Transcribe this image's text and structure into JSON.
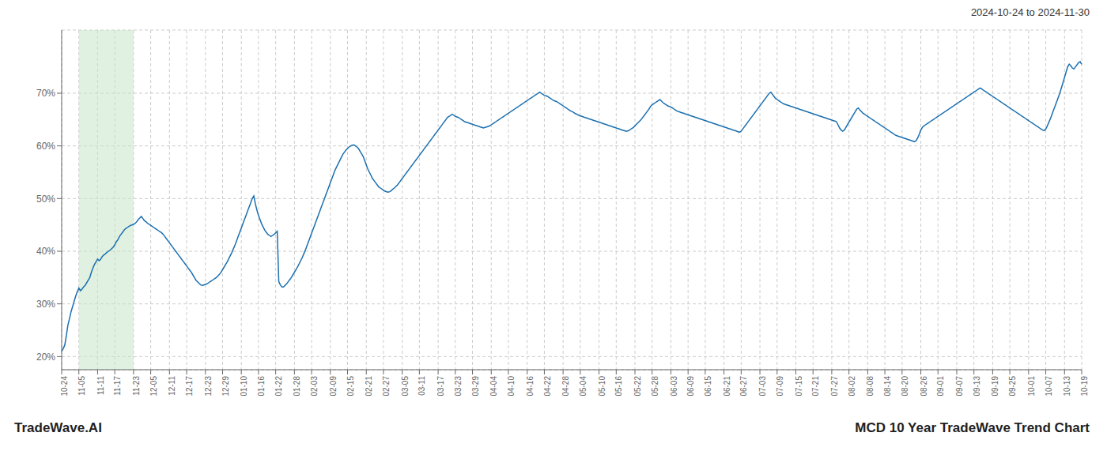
{
  "chart_data": {
    "type": "line",
    "title": "MCD 10 Year TradeWave Trend Chart",
    "subtitle": "2024-10-24 to 2024-11-30",
    "annotations": [
      "TradeWave.AI"
    ],
    "color": "#1a6faf",
    "grid": true,
    "shade": {
      "from": "11-05",
      "to": "11-23",
      "color": "#c8e6c9"
    },
    "ylim": [
      0.175,
      0.82
    ],
    "yticks": [
      {
        "value": 0.2,
        "label": "20%"
      },
      {
        "value": 0.3,
        "label": "30%"
      },
      {
        "value": 0.4,
        "label": "40%"
      },
      {
        "value": 0.5,
        "label": "50%"
      },
      {
        "value": 0.6,
        "label": "60%"
      },
      {
        "value": 0.7,
        "label": "70%"
      }
    ],
    "categories": [
      "10-24",
      null,
      null,
      null,
      null,
      null,
      null,
      null,
      null,
      null,
      null,
      "11-05",
      null,
      null,
      null,
      null,
      null,
      null,
      null,
      null,
      null,
      null,
      null,
      "11-11",
      null,
      null,
      null,
      null,
      null,
      null,
      null,
      null,
      null,
      null,
      "11-17",
      null,
      null,
      null,
      null,
      null,
      null,
      null,
      null,
      null,
      null,
      null,
      "11-23",
      null,
      null,
      null,
      null,
      null,
      null,
      null,
      null,
      null,
      null,
      "12-05",
      null,
      null,
      null,
      null,
      null,
      null,
      null,
      null,
      null,
      null,
      null,
      "12-11",
      null,
      null,
      null,
      null,
      null,
      null,
      null,
      null,
      null,
      null,
      "12-17",
      null,
      null,
      null,
      null,
      null,
      null,
      null,
      null,
      null,
      null,
      null,
      "12-23",
      null,
      null,
      null,
      null,
      null,
      null,
      null,
      null,
      null,
      null,
      "12-29",
      null,
      null,
      null,
      null,
      null,
      null,
      null,
      null,
      null,
      null,
      null,
      "01-10",
      null,
      null,
      null,
      null,
      null,
      null,
      null,
      null,
      null,
      null,
      "01-16",
      null,
      null,
      null,
      null,
      null,
      null,
      null,
      null,
      null,
      null,
      "01-22",
      null,
      null,
      null,
      null,
      null,
      null,
      null,
      null,
      null,
      null,
      null,
      "01-28",
      null,
      null,
      null,
      null,
      null,
      null,
      null,
      null,
      null,
      null,
      "02-03",
      null,
      null,
      null,
      null,
      null,
      null,
      null,
      null,
      null,
      null,
      null,
      "02-09",
      null,
      null,
      null,
      null,
      null,
      null,
      null,
      null,
      null,
      null,
      "02-15",
      null,
      null,
      null,
      null,
      null,
      null,
      null,
      null,
      null,
      null,
      null,
      "02-21",
      null,
      null,
      null,
      null,
      null,
      null,
      null,
      null,
      null,
      null,
      "02-27",
      null,
      null,
      null,
      null,
      null,
      null,
      null,
      null,
      null,
      null,
      null,
      "03-05",
      null,
      null,
      null,
      null,
      null,
      null,
      null,
      null,
      null,
      null,
      "03-11",
      null,
      null,
      null,
      null,
      null,
      null,
      null,
      null,
      null,
      null,
      null,
      "03-17",
      null,
      null,
      null,
      null,
      null,
      null,
      null,
      null,
      null,
      null,
      "03-23",
      null,
      null,
      null,
      null,
      null,
      null,
      null,
      null,
      null,
      null,
      "03-29",
      null,
      null,
      null,
      null,
      null,
      null,
      null,
      null,
      null,
      null,
      null,
      "04-04",
      null,
      null,
      null,
      null,
      null,
      null,
      null,
      null,
      null,
      null,
      "04-10",
      null,
      null,
      null,
      null,
      null,
      null,
      null,
      null,
      null,
      null,
      null,
      "04-16",
      null,
      null,
      null,
      null,
      null,
      null,
      null,
      null,
      null,
      null,
      "04-22",
      null,
      null,
      null,
      null,
      null,
      null,
      null,
      null,
      null,
      null,
      null,
      "04-28",
      null,
      null,
      null,
      null,
      null,
      null,
      null,
      null,
      null,
      null,
      "05-04",
      null,
      null,
      null,
      null,
      null,
      null,
      null,
      null,
      null,
      null,
      null,
      "05-10",
      null,
      null,
      null,
      null,
      null,
      null,
      null,
      null,
      null,
      null,
      "05-16",
      null,
      null,
      null,
      null,
      null,
      null,
      null,
      null,
      null,
      null,
      null,
      "05-22",
      null,
      null,
      null,
      null,
      null,
      null,
      null,
      null,
      null,
      null,
      "05-28",
      null,
      null,
      null,
      null,
      null,
      null,
      null,
      null,
      null,
      null,
      null,
      "06-03",
      null,
      null,
      null,
      null,
      null,
      null,
      null,
      null,
      null,
      null,
      "06-09",
      null,
      null,
      null,
      null,
      null,
      null,
      null,
      null,
      null,
      null,
      "06-15",
      null,
      null,
      null,
      null,
      null,
      null,
      null,
      null,
      null,
      null,
      null,
      "06-21",
      null,
      null,
      null,
      null,
      null,
      null,
      null,
      null,
      null,
      null,
      "06-27",
      null,
      null,
      null,
      null,
      null,
      null,
      null,
      null,
      null,
      null,
      null,
      "07-03",
      null,
      null,
      null,
      null,
      null,
      null,
      null,
      null,
      null,
      null,
      "07-09",
      null,
      null,
      null,
      null,
      null,
      null,
      null,
      null,
      null,
      null,
      null,
      "07-15",
      null,
      null,
      null,
      null,
      null,
      null,
      null,
      null,
      null,
      null,
      "07-21",
      null,
      null,
      null,
      null,
      null,
      null,
      null,
      null,
      null,
      null,
      null,
      "07-27",
      null,
      null,
      null,
      null,
      null,
      null,
      null,
      null,
      null,
      null,
      "08-02",
      null,
      null,
      null,
      null,
      null,
      null,
      null,
      null,
      null,
      null,
      null,
      "08-08",
      null,
      null,
      null,
      null,
      null,
      null,
      null,
      null,
      null,
      null,
      "08-14",
      null,
      null,
      null,
      null,
      null,
      null,
      null,
      null,
      null,
      null,
      "08-20",
      null,
      null,
      null,
      null,
      null,
      null,
      null,
      null,
      null,
      null,
      null,
      "08-26",
      null,
      null,
      null,
      null,
      null,
      null,
      null,
      null,
      null,
      null,
      "09-01",
      null,
      null,
      null,
      null,
      null,
      null,
      null,
      null,
      null,
      null,
      null,
      "09-07",
      null,
      null,
      null,
      null,
      null,
      null,
      null,
      null,
      null,
      null,
      "09-13",
      null,
      null,
      null,
      null,
      null,
      null,
      null,
      null,
      null,
      null,
      null,
      "09-19",
      null,
      null,
      null,
      null,
      null,
      null,
      null,
      null,
      null,
      null,
      "09-25",
      null,
      null,
      null,
      null,
      null,
      null,
      null,
      null,
      null,
      null,
      null,
      "10-01",
      null,
      null,
      null,
      null,
      null,
      null,
      null,
      null,
      null,
      null,
      "10-07",
      null,
      null,
      null,
      null,
      null,
      null,
      null,
      null,
      null,
      null,
      null,
      "10-13",
      null,
      null,
      null,
      null,
      null,
      null,
      null,
      null,
      null,
      null,
      "10-19"
    ],
    "values": [
      0.21,
      0.215,
      0.222,
      0.24,
      0.26,
      0.272,
      0.285,
      0.295,
      0.305,
      0.315,
      0.323,
      0.33,
      0.325,
      0.328,
      0.332,
      0.335,
      0.34,
      0.345,
      0.35,
      0.36,
      0.368,
      0.375,
      0.38,
      0.385,
      0.382,
      0.385,
      0.39,
      0.393,
      0.395,
      0.398,
      0.4,
      0.402,
      0.405,
      0.408,
      0.412,
      0.418,
      0.422,
      0.428,
      0.432,
      0.436,
      0.44,
      0.443,
      0.445,
      0.447,
      0.449,
      0.45,
      0.451,
      0.453,
      0.456,
      0.46,
      0.463,
      0.466,
      0.462,
      0.458,
      0.456,
      0.453,
      0.451,
      0.449,
      0.447,
      0.445,
      0.443,
      0.441,
      0.439,
      0.437,
      0.435,
      0.432,
      0.428,
      0.424,
      0.42,
      0.416,
      0.412,
      0.408,
      0.404,
      0.4,
      0.396,
      0.392,
      0.388,
      0.384,
      0.38,
      0.376,
      0.372,
      0.368,
      0.364,
      0.36,
      0.355,
      0.35,
      0.345,
      0.342,
      0.339,
      0.336,
      0.335,
      0.336,
      0.337,
      0.338,
      0.34,
      0.342,
      0.344,
      0.346,
      0.348,
      0.35,
      0.353,
      0.356,
      0.36,
      0.365,
      0.37,
      0.375,
      0.38,
      0.386,
      0.392,
      0.398,
      0.405,
      0.412,
      0.42,
      0.428,
      0.436,
      0.444,
      0.452,
      0.46,
      0.468,
      0.476,
      0.484,
      0.492,
      0.5,
      0.505,
      0.49,
      0.478,
      0.468,
      0.46,
      0.452,
      0.446,
      0.44,
      0.436,
      0.432,
      0.43,
      0.428,
      0.43,
      0.432,
      0.435,
      0.438,
      0.342,
      0.336,
      0.332,
      0.332,
      0.335,
      0.338,
      0.342,
      0.346,
      0.35,
      0.355,
      0.36,
      0.365,
      0.37,
      0.376,
      0.382,
      0.388,
      0.395,
      0.402,
      0.41,
      0.418,
      0.426,
      0.434,
      0.442,
      0.45,
      0.458,
      0.466,
      0.474,
      0.482,
      0.49,
      0.498,
      0.506,
      0.514,
      0.522,
      0.53,
      0.538,
      0.546,
      0.554,
      0.56,
      0.566,
      0.572,
      0.578,
      0.584,
      0.588,
      0.592,
      0.595,
      0.598,
      0.6,
      0.601,
      0.602,
      0.6,
      0.598,
      0.595,
      0.59,
      0.585,
      0.58,
      0.572,
      0.564,
      0.556,
      0.55,
      0.544,
      0.538,
      0.534,
      0.53,
      0.526,
      0.522,
      0.52,
      0.518,
      0.516,
      0.514,
      0.513,
      0.512,
      0.513,
      0.515,
      0.518,
      0.52,
      0.523,
      0.526,
      0.53,
      0.534,
      0.538,
      0.542,
      0.546,
      0.55,
      0.554,
      0.558,
      0.562,
      0.566,
      0.57,
      0.574,
      0.578,
      0.582,
      0.586,
      0.59,
      0.594,
      0.598,
      0.602,
      0.606,
      0.61,
      0.614,
      0.618,
      0.622,
      0.626,
      0.63,
      0.634,
      0.638,
      0.642,
      0.646,
      0.65,
      0.654,
      0.656,
      0.658,
      0.66,
      0.658,
      0.656,
      0.655,
      0.654,
      0.652,
      0.65,
      0.648,
      0.646,
      0.645,
      0.644,
      0.643,
      0.642,
      0.641,
      0.64,
      0.639,
      0.638,
      0.637,
      0.636,
      0.635,
      0.634,
      0.635,
      0.636,
      0.637,
      0.638,
      0.64,
      0.642,
      0.644,
      0.646,
      0.648,
      0.65,
      0.652,
      0.654,
      0.656,
      0.658,
      0.66,
      0.662,
      0.664,
      0.666,
      0.668,
      0.67,
      0.672,
      0.674,
      0.676,
      0.678,
      0.68,
      0.682,
      0.684,
      0.686,
      0.688,
      0.69,
      0.692,
      0.694,
      0.696,
      0.698,
      0.7,
      0.702,
      0.7,
      0.698,
      0.696,
      0.695,
      0.694,
      0.692,
      0.69,
      0.688,
      0.686,
      0.685,
      0.684,
      0.682,
      0.68,
      0.678,
      0.676,
      0.674,
      0.672,
      0.67,
      0.668,
      0.666,
      0.665,
      0.663,
      0.661,
      0.66,
      0.658,
      0.657,
      0.656,
      0.655,
      0.654,
      0.653,
      0.652,
      0.651,
      0.65,
      0.649,
      0.648,
      0.647,
      0.646,
      0.645,
      0.644,
      0.643,
      0.642,
      0.641,
      0.64,
      0.639,
      0.638,
      0.637,
      0.636,
      0.635,
      0.634,
      0.633,
      0.632,
      0.631,
      0.63,
      0.629,
      0.628,
      0.628,
      0.629,
      0.631,
      0.633,
      0.635,
      0.638,
      0.641,
      0.644,
      0.647,
      0.65,
      0.654,
      0.658,
      0.662,
      0.666,
      0.67,
      0.675,
      0.678,
      0.68,
      0.682,
      0.684,
      0.686,
      0.688,
      0.685,
      0.682,
      0.68,
      0.678,
      0.676,
      0.675,
      0.674,
      0.672,
      0.67,
      0.668,
      0.666,
      0.665,
      0.664,
      0.663,
      0.662,
      0.661,
      0.66,
      0.659,
      0.658,
      0.657,
      0.656,
      0.655,
      0.654,
      0.653,
      0.652,
      0.651,
      0.65,
      0.649,
      0.648,
      0.647,
      0.646,
      0.645,
      0.644,
      0.643,
      0.642,
      0.641,
      0.64,
      0.639,
      0.638,
      0.637,
      0.636,
      0.635,
      0.634,
      0.633,
      0.632,
      0.631,
      0.63,
      0.629,
      0.628,
      0.627,
      0.626,
      0.628,
      0.632,
      0.636,
      0.64,
      0.644,
      0.648,
      0.652,
      0.656,
      0.66,
      0.664,
      0.668,
      0.672,
      0.676,
      0.68,
      0.684,
      0.688,
      0.692,
      0.696,
      0.7,
      0.702,
      0.698,
      0.694,
      0.69,
      0.688,
      0.686,
      0.684,
      0.682,
      0.68,
      0.679,
      0.678,
      0.677,
      0.676,
      0.675,
      0.674,
      0.673,
      0.672,
      0.671,
      0.67,
      0.669,
      0.668,
      0.667,
      0.666,
      0.665,
      0.664,
      0.663,
      0.662,
      0.661,
      0.66,
      0.659,
      0.658,
      0.657,
      0.656,
      0.655,
      0.654,
      0.653,
      0.652,
      0.651,
      0.65,
      0.649,
      0.648,
      0.647,
      0.646,
      0.64,
      0.634,
      0.63,
      0.628,
      0.63,
      0.635,
      0.64,
      0.645,
      0.65,
      0.655,
      0.66,
      0.665,
      0.67,
      0.672,
      0.668,
      0.665,
      0.662,
      0.66,
      0.658,
      0.656,
      0.654,
      0.652,
      0.65,
      0.648,
      0.646,
      0.644,
      0.642,
      0.64,
      0.638,
      0.636,
      0.634,
      0.632,
      0.63,
      0.628,
      0.626,
      0.624,
      0.622,
      0.62,
      0.619,
      0.618,
      0.617,
      0.616,
      0.615,
      0.614,
      0.613,
      0.612,
      0.611,
      0.61,
      0.609,
      0.608,
      0.61,
      0.615,
      0.622,
      0.63,
      0.635,
      0.638,
      0.64,
      0.642,
      0.644,
      0.646,
      0.648,
      0.65,
      0.652,
      0.654,
      0.656,
      0.658,
      0.66,
      0.662,
      0.664,
      0.666,
      0.668,
      0.67,
      0.672,
      0.674,
      0.676,
      0.678,
      0.68,
      0.682,
      0.684,
      0.686,
      0.688,
      0.69,
      0.692,
      0.694,
      0.696,
      0.698,
      0.7,
      0.702,
      0.704,
      0.706,
      0.708,
      0.71,
      0.708,
      0.706,
      0.704,
      0.702,
      0.7,
      0.698,
      0.696,
      0.694,
      0.692,
      0.69,
      0.688,
      0.686,
      0.684,
      0.682,
      0.68,
      0.678,
      0.676,
      0.674,
      0.672,
      0.67,
      0.668,
      0.666,
      0.664,
      0.662,
      0.66,
      0.658,
      0.656,
      0.654,
      0.652,
      0.65,
      0.648,
      0.646,
      0.644,
      0.642,
      0.64,
      0.638,
      0.636,
      0.634,
      0.632,
      0.63,
      0.629,
      0.632,
      0.638,
      0.645,
      0.652,
      0.66,
      0.668,
      0.676,
      0.684,
      0.692,
      0.7,
      0.71,
      0.72,
      0.73,
      0.74,
      0.75,
      0.755,
      0.752,
      0.748,
      0.746,
      0.75,
      0.754,
      0.758,
      0.76,
      0.755
    ]
  }
}
